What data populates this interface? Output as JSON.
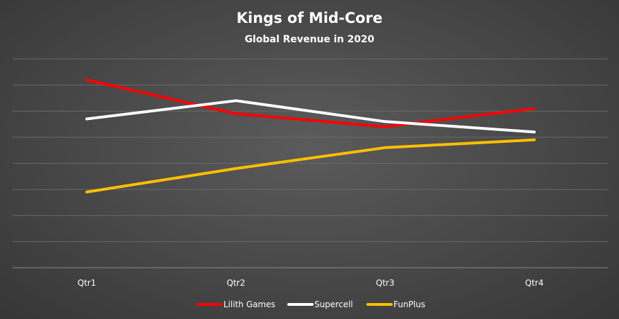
{
  "chart_data": {
    "type": "line",
    "title": "Kings of Mid-Core",
    "subtitle": "Global Revenue in 2020",
    "categories": [
      "Qtr1",
      "Qtr2",
      "Qtr3",
      "Qtr4"
    ],
    "xlabel": "",
    "ylabel": "",
    "ylim": [
      0,
      8
    ],
    "grid": true,
    "legend_position": "bottom",
    "series": [
      {
        "name": "Lilith Games",
        "color": "#ff0000",
        "values": [
          7.2,
          5.9,
          5.4,
          6.1
        ]
      },
      {
        "name": "Supercell",
        "color": "#ffffff",
        "values": [
          5.7,
          6.4,
          5.6,
          5.2
        ]
      },
      {
        "name": "FunPlus",
        "color": "#ffc000",
        "values": [
          2.9,
          3.8,
          4.6,
          4.9
        ]
      }
    ]
  }
}
